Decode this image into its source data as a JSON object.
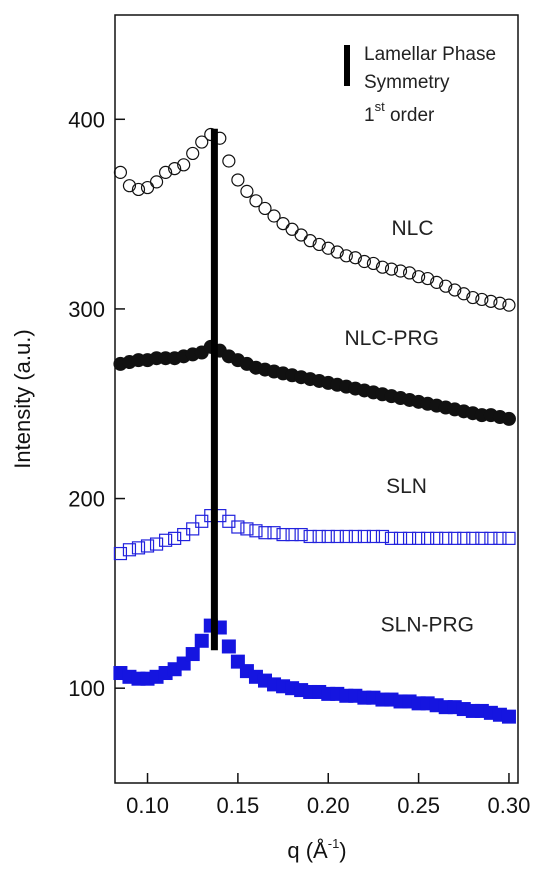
{
  "chart_data": {
    "type": "scatter",
    "xlabel": "q (Å",
    "xlabel_sup": "-1",
    "xlabel_close": ")",
    "ylabel": "Intensity (a.u.)",
    "xlim": [
      0.082,
      0.305
    ],
    "ylim": [
      50,
      455
    ],
    "x_ticks": [
      0.1,
      0.15,
      0.2,
      0.25,
      0.3
    ],
    "x_tick_labels": [
      "0.10",
      "0.15",
      "0.20",
      "0.25",
      "0.30"
    ],
    "y_ticks": [
      100,
      200,
      300,
      400
    ],
    "y_tick_labels": [
      "100",
      "200",
      "300",
      "400"
    ],
    "grid": false,
    "annotations": {
      "reference_line": {
        "x": 0.137,
        "y_range": [
          120,
          395
        ],
        "color": "#000000"
      },
      "legend": {
        "line1": "Lamellar Phase",
        "line2": "Symmetry",
        "line3_num": "1",
        "line3_sup": "st",
        "line3_rest": " order",
        "placement": "top-right"
      }
    },
    "series": [
      {
        "name": "NLC",
        "marker": "open-circle",
        "color": "#111111",
        "points": [
          [
            0.085,
            372
          ],
          [
            0.09,
            365
          ],
          [
            0.095,
            363
          ],
          [
            0.1,
            364
          ],
          [
            0.105,
            367
          ],
          [
            0.11,
            372
          ],
          [
            0.115,
            374
          ],
          [
            0.12,
            376
          ],
          [
            0.125,
            382
          ],
          [
            0.13,
            388
          ],
          [
            0.135,
            392
          ],
          [
            0.14,
            390
          ],
          [
            0.145,
            378
          ],
          [
            0.15,
            368
          ],
          [
            0.155,
            362
          ],
          [
            0.16,
            357
          ],
          [
            0.165,
            353
          ],
          [
            0.17,
            349
          ],
          [
            0.175,
            345
          ],
          [
            0.18,
            342
          ],
          [
            0.185,
            339
          ],
          [
            0.19,
            336
          ],
          [
            0.195,
            334
          ],
          [
            0.2,
            332
          ],
          [
            0.205,
            330
          ],
          [
            0.21,
            328
          ],
          [
            0.215,
            327
          ],
          [
            0.22,
            325
          ],
          [
            0.225,
            324
          ],
          [
            0.23,
            322
          ],
          [
            0.235,
            321
          ],
          [
            0.24,
            320
          ],
          [
            0.245,
            319
          ],
          [
            0.25,
            317
          ],
          [
            0.255,
            316
          ],
          [
            0.26,
            314
          ],
          [
            0.265,
            312
          ],
          [
            0.27,
            310
          ],
          [
            0.275,
            308
          ],
          [
            0.28,
            306
          ],
          [
            0.285,
            305
          ],
          [
            0.29,
            304
          ],
          [
            0.295,
            303
          ],
          [
            0.3,
            302
          ]
        ],
        "label_at": [
          0.235,
          339
        ]
      },
      {
        "name": "NLC-PRG",
        "marker": "filled-circle",
        "color": "#111111",
        "points": [
          [
            0.085,
            271
          ],
          [
            0.09,
            272
          ],
          [
            0.095,
            273
          ],
          [
            0.1,
            273
          ],
          [
            0.105,
            274
          ],
          [
            0.11,
            274
          ],
          [
            0.115,
            274
          ],
          [
            0.12,
            275
          ],
          [
            0.125,
            276
          ],
          [
            0.13,
            277
          ],
          [
            0.135,
            280
          ],
          [
            0.14,
            278
          ],
          [
            0.145,
            275
          ],
          [
            0.15,
            273
          ],
          [
            0.155,
            271
          ],
          [
            0.16,
            269
          ],
          [
            0.165,
            268
          ],
          [
            0.17,
            267
          ],
          [
            0.175,
            266
          ],
          [
            0.18,
            265
          ],
          [
            0.185,
            264
          ],
          [
            0.19,
            263
          ],
          [
            0.195,
            262
          ],
          [
            0.2,
            261
          ],
          [
            0.205,
            260
          ],
          [
            0.21,
            259
          ],
          [
            0.215,
            258
          ],
          [
            0.22,
            257
          ],
          [
            0.225,
            256
          ],
          [
            0.23,
            255
          ],
          [
            0.235,
            254
          ],
          [
            0.24,
            253
          ],
          [
            0.245,
            252
          ],
          [
            0.25,
            251
          ],
          [
            0.255,
            250
          ],
          [
            0.26,
            249
          ],
          [
            0.265,
            248
          ],
          [
            0.27,
            247
          ],
          [
            0.275,
            246
          ],
          [
            0.28,
            245
          ],
          [
            0.285,
            244
          ],
          [
            0.29,
            244
          ],
          [
            0.295,
            243
          ],
          [
            0.3,
            242
          ]
        ],
        "label_at": [
          0.209,
          281
        ]
      },
      {
        "name": "SLN",
        "marker": "open-square",
        "color": "#2222dd",
        "points": [
          [
            0.085,
            171
          ],
          [
            0.09,
            173
          ],
          [
            0.095,
            174
          ],
          [
            0.1,
            175
          ],
          [
            0.105,
            176
          ],
          [
            0.11,
            178
          ],
          [
            0.115,
            179
          ],
          [
            0.12,
            181
          ],
          [
            0.125,
            184
          ],
          [
            0.13,
            188
          ],
          [
            0.135,
            191
          ],
          [
            0.14,
            191
          ],
          [
            0.145,
            188
          ],
          [
            0.15,
            185
          ],
          [
            0.155,
            184
          ],
          [
            0.16,
            183
          ],
          [
            0.165,
            182
          ],
          [
            0.17,
            182
          ],
          [
            0.175,
            181
          ],
          [
            0.18,
            181
          ],
          [
            0.185,
            181
          ],
          [
            0.19,
            180
          ],
          [
            0.195,
            180
          ],
          [
            0.2,
            180
          ],
          [
            0.205,
            180
          ],
          [
            0.21,
            180
          ],
          [
            0.215,
            180
          ],
          [
            0.22,
            180
          ],
          [
            0.225,
            180
          ],
          [
            0.23,
            180
          ],
          [
            0.235,
            179
          ],
          [
            0.24,
            179
          ],
          [
            0.245,
            179
          ],
          [
            0.25,
            179
          ],
          [
            0.255,
            179
          ],
          [
            0.26,
            179
          ],
          [
            0.265,
            179
          ],
          [
            0.27,
            179
          ],
          [
            0.275,
            179
          ],
          [
            0.28,
            179
          ],
          [
            0.285,
            179
          ],
          [
            0.29,
            179
          ],
          [
            0.295,
            179
          ],
          [
            0.3,
            179
          ]
        ],
        "label_at": [
          0.232,
          203
        ]
      },
      {
        "name": "SLN-PRG",
        "marker": "filled-square",
        "color": "#1515e0",
        "points": [
          [
            0.085,
            108
          ],
          [
            0.09,
            106
          ],
          [
            0.095,
            105
          ],
          [
            0.1,
            105
          ],
          [
            0.105,
            106
          ],
          [
            0.11,
            108
          ],
          [
            0.115,
            110
          ],
          [
            0.12,
            113
          ],
          [
            0.125,
            118
          ],
          [
            0.13,
            125
          ],
          [
            0.135,
            133
          ],
          [
            0.14,
            132
          ],
          [
            0.145,
            122
          ],
          [
            0.15,
            114
          ],
          [
            0.155,
            109
          ],
          [
            0.16,
            106
          ],
          [
            0.165,
            104
          ],
          [
            0.17,
            102
          ],
          [
            0.175,
            101
          ],
          [
            0.18,
            100
          ],
          [
            0.185,
            99
          ],
          [
            0.19,
            98
          ],
          [
            0.195,
            98
          ],
          [
            0.2,
            97
          ],
          [
            0.205,
            97
          ],
          [
            0.21,
            96
          ],
          [
            0.215,
            96
          ],
          [
            0.22,
            95
          ],
          [
            0.225,
            95
          ],
          [
            0.23,
            94
          ],
          [
            0.235,
            94
          ],
          [
            0.24,
            93
          ],
          [
            0.245,
            93
          ],
          [
            0.25,
            92
          ],
          [
            0.255,
            92
          ],
          [
            0.26,
            91
          ],
          [
            0.265,
            90
          ],
          [
            0.27,
            90
          ],
          [
            0.275,
            89
          ],
          [
            0.28,
            88
          ],
          [
            0.285,
            88
          ],
          [
            0.29,
            87
          ],
          [
            0.295,
            86
          ],
          [
            0.3,
            85
          ]
        ],
        "label_at": [
          0.229,
          130
        ]
      }
    ]
  }
}
